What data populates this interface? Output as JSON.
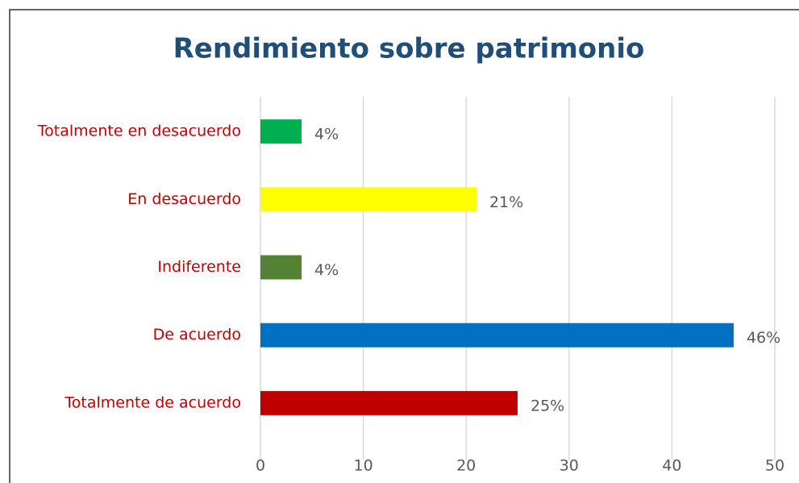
{
  "chart_data": {
    "type": "bar",
    "orientation": "horizontal",
    "title": "Rendimiento sobre patrimonio",
    "categories": [
      "Totalmente en desacuerdo",
      "En desacuerdo",
      "Indiferente",
      "De acuerdo",
      "Totalmente de acuerdo"
    ],
    "values": [
      4,
      21,
      4,
      46,
      25
    ],
    "value_labels": [
      "4%",
      "21%",
      "4%",
      "46%",
      "25%"
    ],
    "colors": [
      "#00b050",
      "#ffff00",
      "#548235",
      "#0070c0",
      "#c00000"
    ],
    "xlim": [
      0,
      50
    ],
    "xticks": [
      0,
      10,
      20,
      30,
      40,
      50
    ],
    "grid": true
  }
}
